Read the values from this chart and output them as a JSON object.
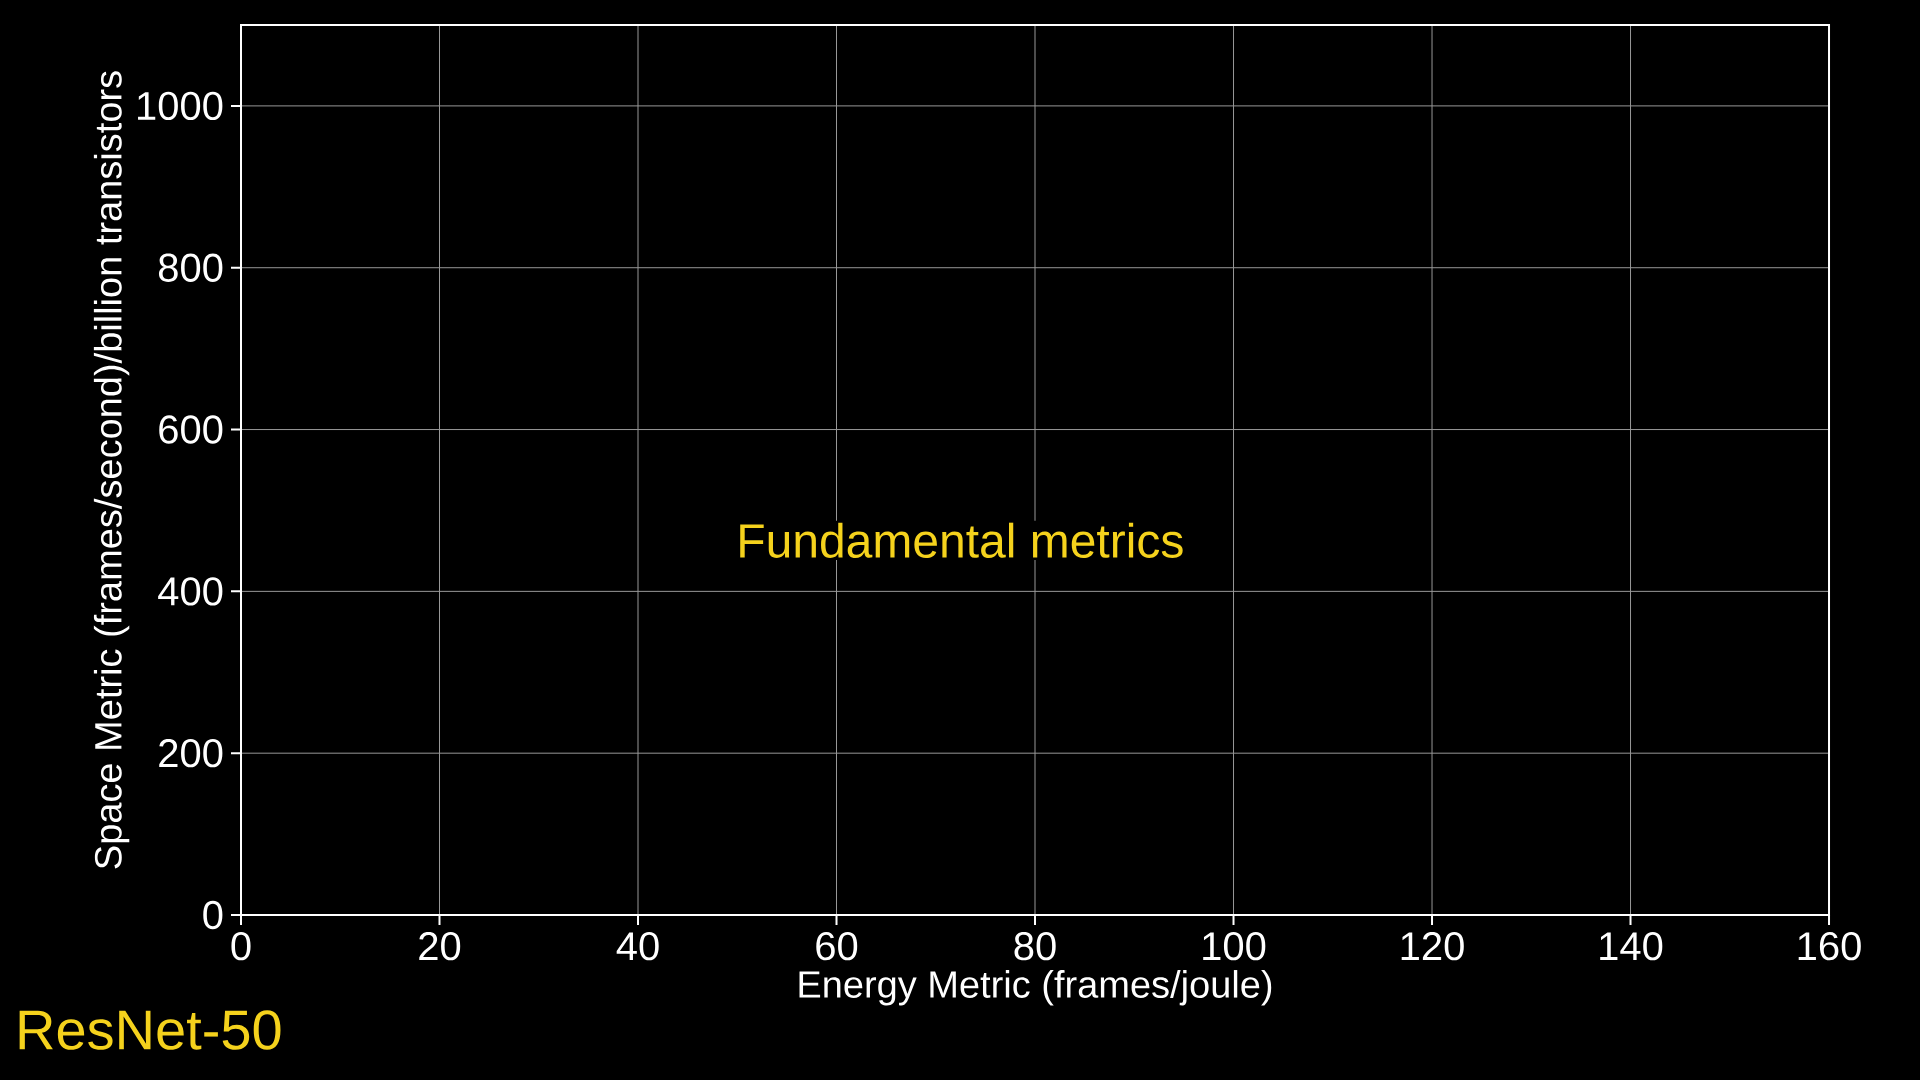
{
  "chart_data": {
    "type": "scatter",
    "title": "ResNet-50",
    "xlabel": "Energy Metric (frames/joule)",
    "ylabel": "Space Metric (frames/second)/billion transistors",
    "annotations": [
      "Fundamental metrics"
    ],
    "xlim": [
      0,
      160
    ],
    "ylim": [
      0,
      1100
    ],
    "xticks": [
      0,
      20,
      40,
      60,
      80,
      100,
      120,
      140,
      160
    ],
    "yticks": [
      0,
      200,
      400,
      600,
      800,
      1000
    ],
    "grid": true
  }
}
